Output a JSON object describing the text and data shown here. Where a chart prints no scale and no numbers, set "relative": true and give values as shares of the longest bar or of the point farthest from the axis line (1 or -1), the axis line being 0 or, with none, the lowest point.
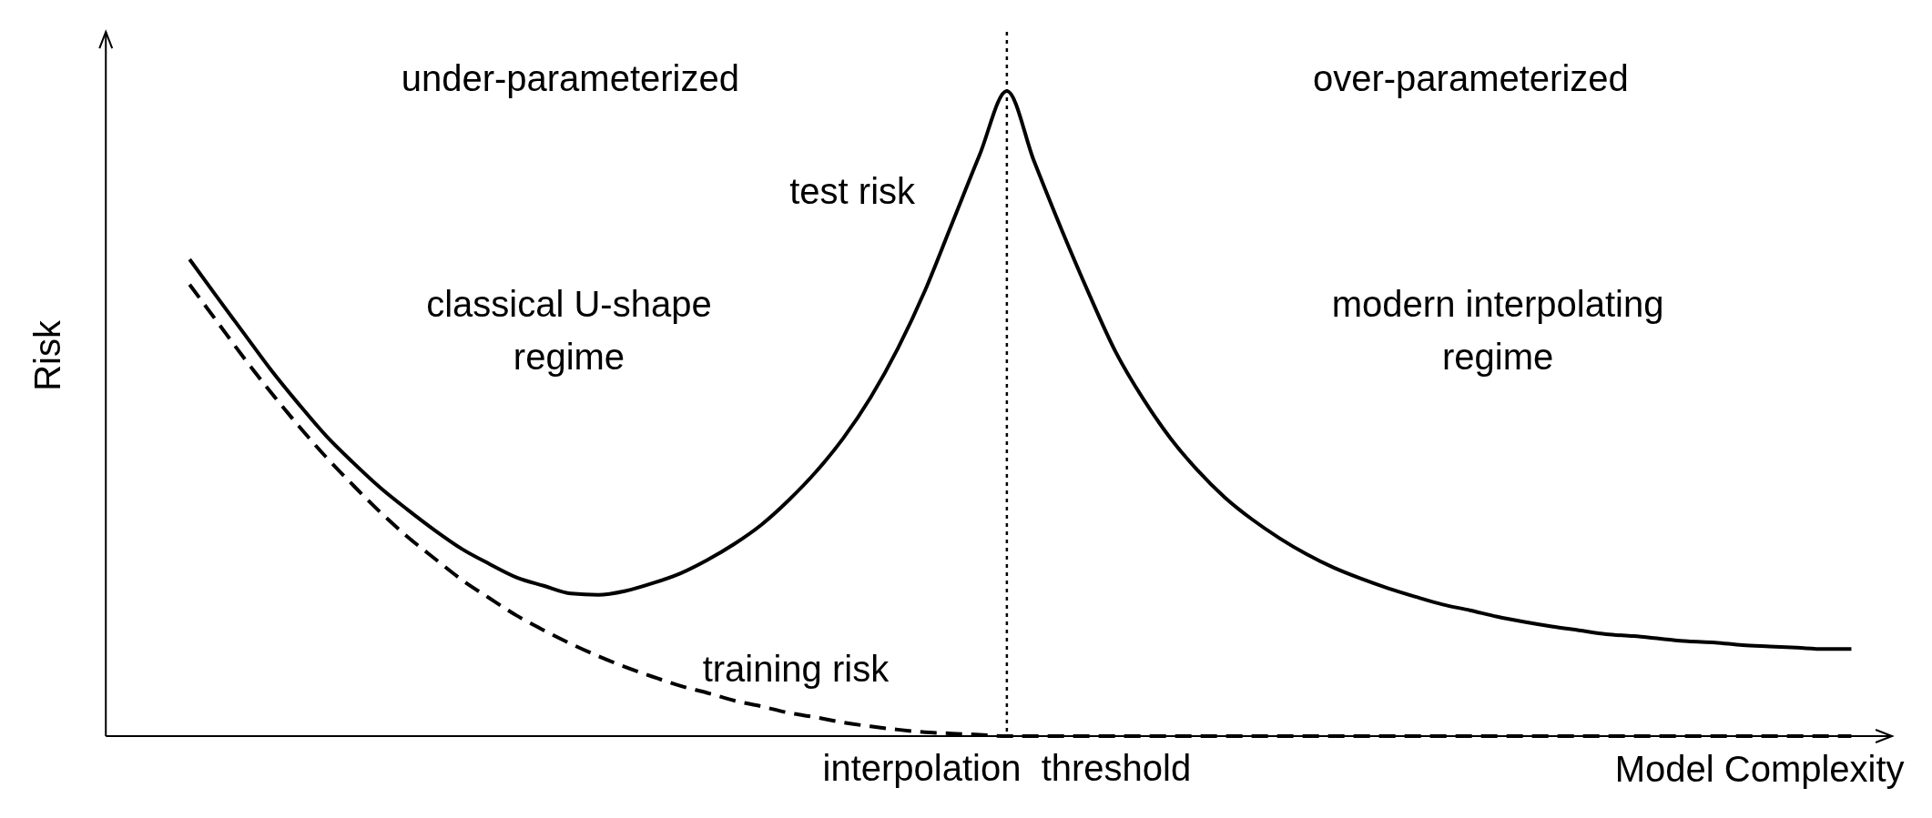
{
  "chart_data": {
    "type": "line",
    "relative": true,
    "xlabel": "Model Complexity",
    "ylabel": "Risk",
    "categories": [
      null,
      null,
      null,
      null,
      null,
      null,
      null,
      null,
      null,
      null,
      null,
      null,
      null,
      null,
      null,
      null,
      null,
      null,
      null,
      null,
      null,
      null,
      null,
      null,
      null,
      null,
      null,
      null,
      null,
      null,
      null,
      null,
      null,
      null,
      null,
      null,
      null,
      null,
      null,
      null,
      null,
      null,
      null,
      null,
      null,
      null,
      null,
      null,
      null,
      null,
      null,
      null,
      null,
      null,
      null,
      null,
      null,
      null,
      null,
      null,
      null,
      null
    ],
    "series": [
      {
        "name": "test risk",
        "color": "#000000",
        "line_style": "solid",
        "values": [
          0.739,
          0.681,
          0.624,
          0.567,
          0.515,
          0.466,
          0.424,
          0.385,
          0.351,
          0.319,
          0.29,
          0.267,
          0.246,
          0.233,
          0.221,
          0.219,
          0.225,
          0.237,
          0.252,
          0.273,
          0.298,
          0.328,
          0.366,
          0.41,
          0.462,
          0.525,
          0.601,
          0.691,
          0.796,
          0.901,
          1,
          0.891,
          0.786,
          0.687,
          0.595,
          0.523,
          0.462,
          0.412,
          0.37,
          0.336,
          0.307,
          0.282,
          0.261,
          0.244,
          0.229,
          0.216,
          0.204,
          0.195,
          0.185,
          0.177,
          0.17,
          0.164,
          0.158,
          0.155,
          0.151,
          0.147,
          0.145,
          0.141,
          0.139,
          0.137,
          0.135,
          0.135
        ]
      },
      {
        "name": "training risk",
        "color": "#000000",
        "line_style": "dashed",
        "values": [
          0.7,
          0.643,
          0.586,
          0.532,
          0.481,
          0.433,
          0.389,
          0.347,
          0.309,
          0.275,
          0.242,
          0.214,
          0.187,
          0.164,
          0.143,
          0.124,
          0.107,
          0.092,
          0.078,
          0.067,
          0.055,
          0.046,
          0.036,
          0.029,
          0.021,
          0.015,
          0.01,
          0.006,
          0.004,
          0.002,
          0,
          0,
          0,
          0,
          0,
          0,
          0,
          0,
          0,
          0,
          0,
          0,
          0,
          0,
          0,
          0,
          0,
          0,
          0,
          0,
          0,
          0,
          0,
          0,
          0,
          0,
          0,
          0,
          0,
          0,
          0,
          0
        ]
      }
    ],
    "annotations": [
      "under-parameterized",
      "over-parameterized",
      "classical U-shape\nregime",
      "modern interpolating\nregime",
      "interpolation  threshold"
    ]
  }
}
